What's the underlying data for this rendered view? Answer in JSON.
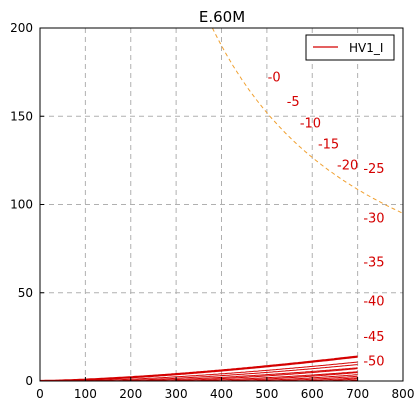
{
  "chart_data": {
    "type": "line",
    "title": "E.60M",
    "xlabel": "",
    "ylabel": "",
    "xlim": [
      0,
      800
    ],
    "ylim": [
      0,
      200
    ],
    "xticks": [
      "0",
      "100",
      "200",
      "300",
      "400",
      "500",
      "600",
      "700",
      "800"
    ],
    "yticks": [
      "0",
      "50",
      "100",
      "150",
      "200"
    ],
    "grid": true,
    "legend": {
      "position": "top-right",
      "entries": [
        "HV1_I"
      ]
    },
    "colors": {
      "curves": "#d40000",
      "labels": "#d40000",
      "dissipation": "#f0a030",
      "grid": "#b0b0b0"
    },
    "series": [
      {
        "name": "HV1_I",
        "label": "-0",
        "bold": true,
        "k": 0.000747,
        "v0": 0
      },
      {
        "name": "HV1_I",
        "label": "",
        "bold": false,
        "k": 0.000679,
        "v0": 70
      },
      {
        "name": "HV1_I",
        "label": "-5",
        "bold": false,
        "k": 0.000684,
        "v0": 130
      },
      {
        "name": "HV1_I",
        "label": "",
        "bold": false,
        "k": 0.00063,
        "v0": 180
      },
      {
        "name": "HV1_I",
        "label": "-10",
        "bold": false,
        "k": 0.000734,
        "v0": 250
      },
      {
        "name": "HV1_I",
        "label": "",
        "bold": false,
        "k": 0.000656,
        "v0": 300
      },
      {
        "name": "HV1_I",
        "label": "-15",
        "bold": false,
        "k": 0.000819,
        "v0": 375
      },
      {
        "name": "HV1_I",
        "label": "",
        "bold": false,
        "k": 0.00081,
        "v0": 430
      },
      {
        "name": "HV1_I",
        "label": "-20",
        "bold": false,
        "k": 0.000882,
        "v0": 490
      },
      {
        "name": "HV1_I",
        "label": "-25",
        "bold": false,
        "k": 0.00106,
        "v0": 555
      },
      {
        "name": "HV1_I",
        "label": "-30",
        "bold": false,
        "k": 0.0016,
        "v0": 615
      },
      {
        "name": "HV1_I",
        "label": "-35",
        "bold": false,
        "k": 0.00183,
        "v0": 660
      },
      {
        "name": "HV1_I",
        "label": "-40",
        "bold": false,
        "k": 0.00211,
        "v0": 685
      },
      {
        "name": "HV1_I",
        "label": "",
        "bold": false,
        "k": 0.0025,
        "v0": 695
      },
      {
        "name": "HV1_I",
        "label": "-45",
        "bold": false,
        "k": 0.0023,
        "v0": 705
      },
      {
        "name": "HV1_I",
        "label": "-50",
        "bold": false,
        "k": 0.0016,
        "v0": 725
      }
    ],
    "curve_end": {
      "v_max": 700,
      "i_max": 200
    },
    "label_positions": [
      {
        "text": "-0",
        "x": 516,
        "y": 172
      },
      {
        "text": "-5",
        "x": 558,
        "y": 158
      },
      {
        "text": "-10",
        "x": 596,
        "y": 146
      },
      {
        "text": "-15",
        "x": 636,
        "y": 134
      },
      {
        "text": "-20",
        "x": 678,
        "y": 122
      },
      {
        "text": "-25",
        "x": 736,
        "y": 120
      },
      {
        "text": "-30",
        "x": 736,
        "y": 92
      },
      {
        "text": "-35",
        "x": 736,
        "y": 67
      },
      {
        "text": "-40",
        "x": 736,
        "y": 45
      },
      {
        "text": "-45",
        "x": 736,
        "y": 25
      },
      {
        "text": "-50",
        "x": 736,
        "y": 11
      }
    ],
    "dissipation_watts": 76
  }
}
